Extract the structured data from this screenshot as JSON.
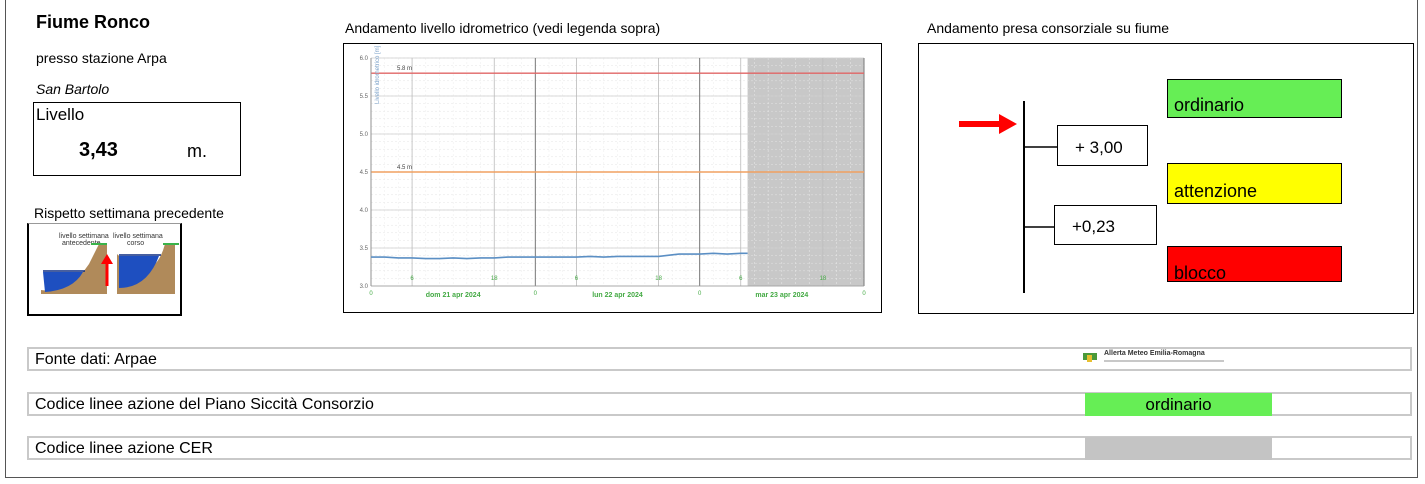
{
  "station": {
    "river": "Fiume Ronco",
    "near": "presso stazione Arpa",
    "place": "San Bartolo",
    "level_label": "Livello",
    "level_value": "3,43",
    "level_unit": "m.",
    "week_label": "Rispetto settimana precedente",
    "week_image_texts": [
      "livello settimana",
      "antecedente",
      "livello settimana",
      "corso"
    ],
    "week_trend": "up"
  },
  "chart_title": "Andamento livello idrometrico (vedi legenda sopra)",
  "chart_data": {
    "type": "line",
    "ylabel": "Livello idrometrico [m]",
    "ylim": [
      3.0,
      6.0
    ],
    "y_ticks": [
      "3.0",
      "3.5",
      "4.0",
      "4.5",
      "5.0",
      "5.5",
      "6.0"
    ],
    "x_ticks": [
      "0",
      "6",
      "18",
      "0",
      "6",
      "18",
      "0",
      "6",
      "18",
      "0"
    ],
    "x_hour_ticks": [
      0,
      6,
      18,
      24,
      30,
      42,
      48,
      54,
      66,
      72
    ],
    "day_labels": [
      {
        "label": "dom 21 apr 2024",
        "hour": 12
      },
      {
        "label": "lun 22 apr 2024",
        "hour": 36
      },
      {
        "label": "mar 23 apr 2024",
        "hour": 60
      }
    ],
    "xlim_hours": [
      0,
      72
    ],
    "thresholds": [
      {
        "label": "5.8 m",
        "value": 5.8,
        "color": "#e06666"
      },
      {
        "label": "4.5 m",
        "value": 4.5,
        "color": "#f0a060"
      }
    ],
    "forecast_from_hour": 55,
    "series": [
      {
        "color": "#5b8fc4",
        "x": [
          0,
          2,
          4,
          6,
          8,
          10,
          12,
          14,
          16,
          18,
          20,
          22,
          24,
          26,
          28,
          30,
          32,
          34,
          36,
          38,
          40,
          42,
          44,
          45,
          46,
          48,
          50,
          52,
          54,
          55
        ],
        "y": [
          3.38,
          3.38,
          3.37,
          3.37,
          3.36,
          3.36,
          3.37,
          3.36,
          3.37,
          3.37,
          3.38,
          3.38,
          3.38,
          3.38,
          3.38,
          3.38,
          3.39,
          3.38,
          3.39,
          3.39,
          3.39,
          3.39,
          3.41,
          3.42,
          3.42,
          3.42,
          3.43,
          3.42,
          3.43,
          3.43
        ]
      }
    ]
  },
  "presa_title": "Andamento presa consorziale su fiume",
  "presa": {
    "states": [
      {
        "label": "ordinario",
        "color": "#66ee55"
      },
      {
        "label": "attenzione",
        "color": "#ffff00"
      },
      {
        "label": "blocco",
        "color": "#ff0000"
      }
    ],
    "value_upper": "+ 3,00",
    "value_lower": "+0,23",
    "arrow_color": "#ff0000"
  },
  "rows": {
    "fonte_label": "Fonte dati: Arpae",
    "logo_text": "Allerta Meteo Emilia-Romagna",
    "piano_label": "Codice linee azione del Piano Siccità Consorzio",
    "piano_code": "ordinario",
    "piano_color": "#66ee55",
    "cer_label": "Codice linee azione CER",
    "cer_code": "",
    "cer_color": "#c4c4c4"
  }
}
